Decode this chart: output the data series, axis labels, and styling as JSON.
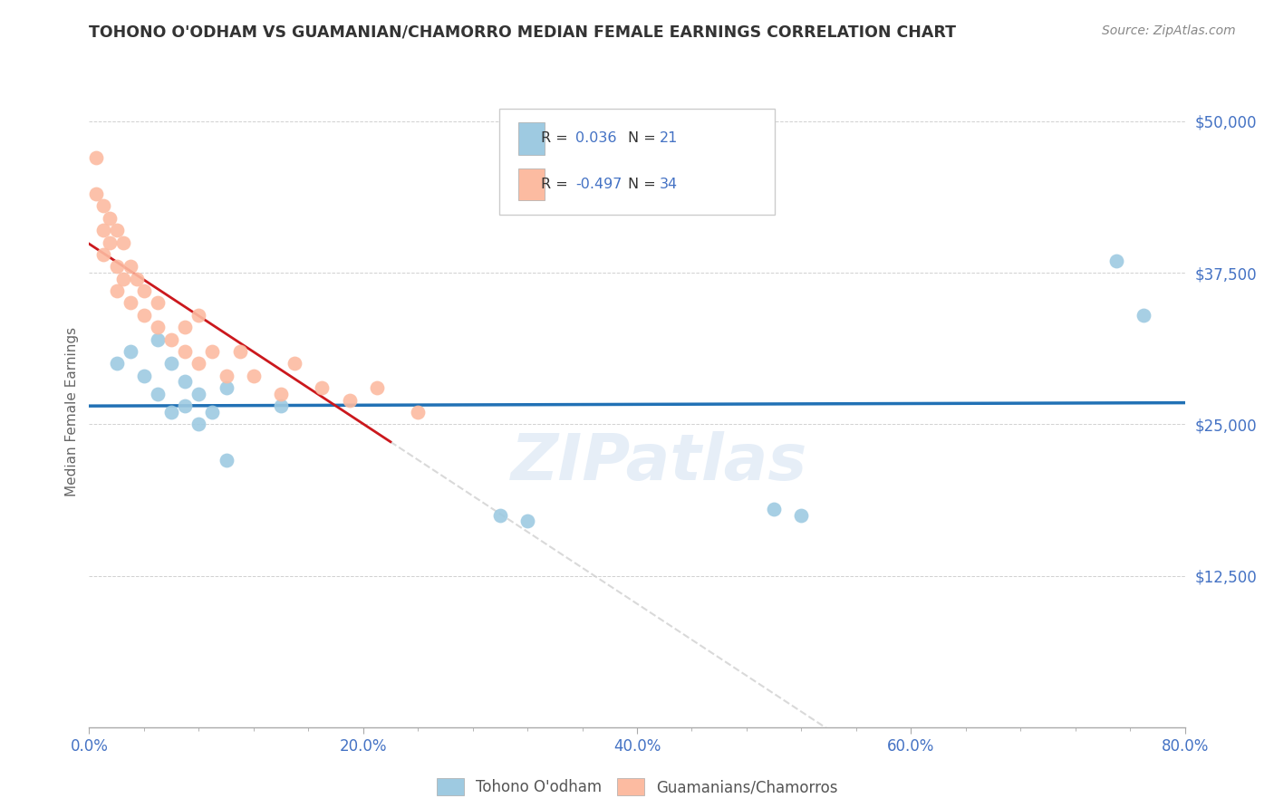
{
  "title": "TOHONO O'ODHAM VS GUAMANIAN/CHAMORRO MEDIAN FEMALE EARNINGS CORRELATION CHART",
  "source": "Source: ZipAtlas.com",
  "ylabel": "Median Female Earnings",
  "xlim": [
    0.0,
    0.8
  ],
  "ylim": [
    0,
    52000
  ],
  "yticks": [
    0,
    12500,
    25000,
    37500,
    50000
  ],
  "ytick_labels": [
    "",
    "$12,500",
    "$25,000",
    "$37,500",
    "$50,000"
  ],
  "xtick_labels": [
    "0.0%",
    "",
    "",
    "",
    "",
    "20.0%",
    "",
    "",
    "",
    "",
    "40.0%",
    "",
    "",
    "",
    "",
    "60.0%",
    "",
    "",
    "",
    "",
    "80.0%"
  ],
  "xticks": [
    0.0,
    0.04,
    0.08,
    0.12,
    0.16,
    0.2,
    0.24,
    0.28,
    0.32,
    0.36,
    0.4,
    0.44,
    0.48,
    0.52,
    0.56,
    0.6,
    0.64,
    0.68,
    0.72,
    0.76,
    0.8
  ],
  "legend1_R": "0.036",
  "legend1_N": "21",
  "legend2_R": "-0.497",
  "legend2_N": "34",
  "blue_color": "#9ecae1",
  "pink_color": "#fcbba1",
  "line_blue": "#2171b5",
  "line_pink": "#cb181d",
  "line_gray": "#d0d0d0",
  "watermark": "ZIPatlas",
  "title_color": "#333333",
  "axis_label_color": "#666666",
  "tick_color": "#4472c4",
  "blue_scatter_x": [
    0.02,
    0.03,
    0.04,
    0.05,
    0.05,
    0.06,
    0.06,
    0.07,
    0.07,
    0.08,
    0.08,
    0.09,
    0.1,
    0.1,
    0.14,
    0.3,
    0.32,
    0.5,
    0.52,
    0.75,
    0.77
  ],
  "blue_scatter_y": [
    30000,
    31000,
    29000,
    32000,
    27500,
    30000,
    26000,
    28500,
    26500,
    27500,
    25000,
    26000,
    28000,
    22000,
    26500,
    17500,
    17000,
    18000,
    17500,
    38500,
    34000
  ],
  "pink_scatter_x": [
    0.005,
    0.005,
    0.01,
    0.01,
    0.01,
    0.015,
    0.015,
    0.02,
    0.02,
    0.02,
    0.025,
    0.025,
    0.03,
    0.03,
    0.035,
    0.04,
    0.04,
    0.05,
    0.05,
    0.06,
    0.07,
    0.07,
    0.08,
    0.08,
    0.09,
    0.1,
    0.11,
    0.12,
    0.14,
    0.15,
    0.17,
    0.19,
    0.21,
    0.24
  ],
  "pink_scatter_y": [
    47000,
    44000,
    43000,
    41000,
    39000,
    42000,
    40000,
    41000,
    38000,
    36000,
    40000,
    37000,
    38000,
    35000,
    37000,
    36000,
    34000,
    35000,
    33000,
    32000,
    33000,
    31000,
    34000,
    30000,
    31000,
    29000,
    31000,
    29000,
    27500,
    30000,
    28000,
    27000,
    28000,
    26000
  ]
}
